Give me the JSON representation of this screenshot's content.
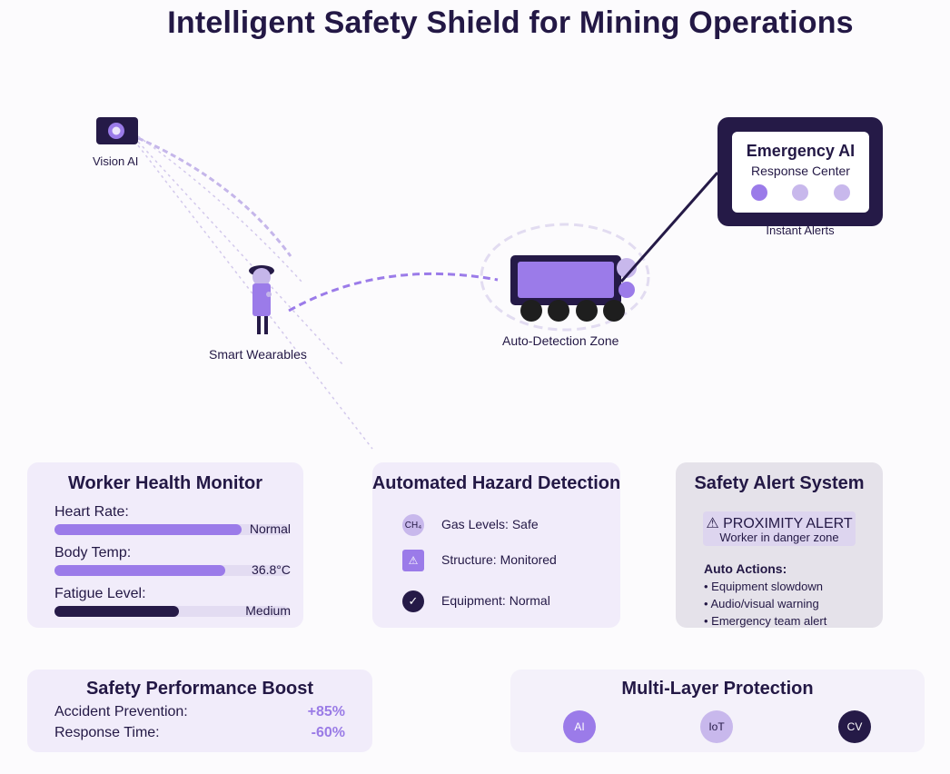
{
  "title": "Intelligent Safety Shield for Mining Operations",
  "diagram": {
    "vision_label": "Vision AI",
    "wearables_label": "Smart Wearables",
    "zone_label": "Auto-Detection Zone",
    "emergency_title": "Emergency AI",
    "emergency_subtitle": "Response Center",
    "instant_alerts": "Instant Alerts"
  },
  "health": {
    "title": "Worker Health Monitor",
    "metrics": [
      {
        "label": "Heart Rate:",
        "value": "Normal",
        "level": 0.8,
        "color": "#9b7be9"
      },
      {
        "label": "Body Temp:",
        "value": "36.8°C",
        "level": 0.73,
        "color": "#9b7be9"
      },
      {
        "label": "Fatigue Level:",
        "value": "Medium",
        "level": 0.53,
        "color": "#261a48"
      }
    ]
  },
  "hazard": {
    "title": "Automated Hazard Detection",
    "items": [
      {
        "icon": "gas-icon",
        "glyph": "CH₄",
        "text": "Gas Levels: Safe"
      },
      {
        "icon": "warning-icon",
        "glyph": "⚠",
        "text": "Structure: Monitored"
      },
      {
        "icon": "check-icon",
        "glyph": "✓",
        "text": "Equipment: Normal"
      }
    ]
  },
  "alert": {
    "title": "Safety Alert System",
    "banner_title": "⚠ PROXIMITY ALERT",
    "banner_sub": "Worker in danger zone",
    "actions_title": "Auto Actions:",
    "actions": [
      "• Equipment slowdown",
      "• Audio/visual warning",
      "• Emergency team alert"
    ]
  },
  "performance": {
    "title": "Safety Performance Boost",
    "rows": [
      {
        "label": "Accident Prevention:",
        "value": "+85%"
      },
      {
        "label": "Response Time:",
        "value": "-60%"
      }
    ]
  },
  "layers": {
    "title": "Multi-Layer Protection",
    "items": [
      {
        "label": "AI",
        "color": "#9b7be9",
        "text_color": "#ffffff"
      },
      {
        "label": "IoT",
        "color": "#c8b8ec",
        "text_color": "#231845"
      },
      {
        "label": "CV",
        "color": "#251a47",
        "text_color": "#ffffff"
      }
    ]
  },
  "colors": {
    "primary": "#9b7be9",
    "light": "#c8b8ec",
    "dark": "#251a47"
  }
}
